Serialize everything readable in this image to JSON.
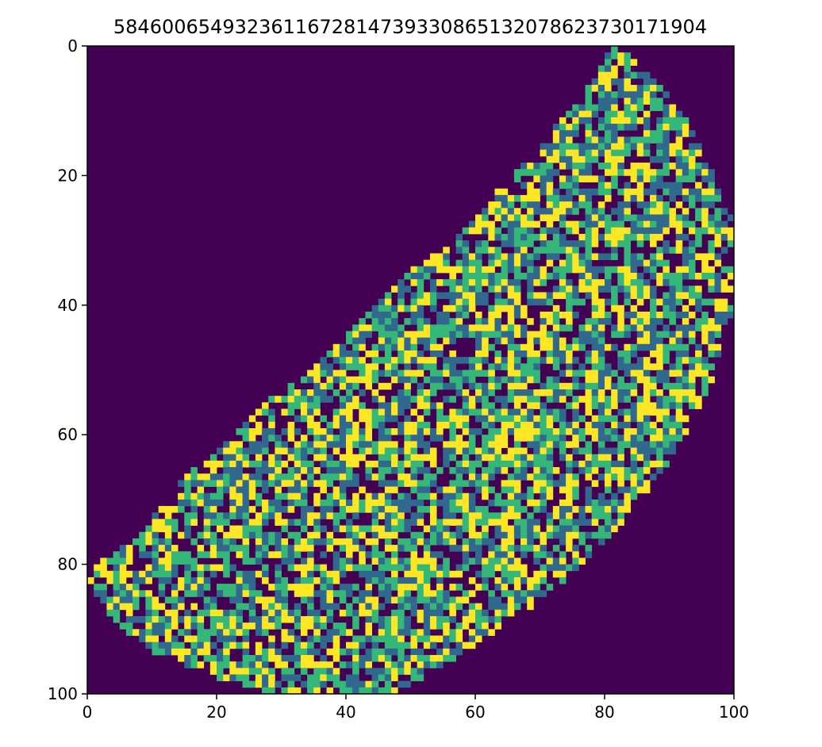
{
  "chart_data": {
    "type": "heatmap",
    "title": "5846006549323611672814739330865132078623730171904",
    "xlabel": "",
    "ylabel": "",
    "xlim": [
      0,
      100
    ],
    "ylim": [
      100,
      0
    ],
    "grid": false,
    "origin": "upper",
    "xticks": [
      "0",
      "20",
      "40",
      "60",
      "80",
      "100"
    ],
    "yticks": [
      "0",
      "20",
      "40",
      "60",
      "80",
      "100"
    ],
    "levels": [
      0,
      1,
      2,
      3
    ],
    "colormap": [
      "#440154",
      "#31688e",
      "#35b779",
      "#fde725"
    ],
    "background_value": 0,
    "region_left_boundary": [
      [
        0,
        81
      ],
      [
        1,
        80
      ],
      [
        5,
        78
      ],
      [
        10,
        74
      ],
      [
        15,
        70
      ],
      [
        20,
        65
      ],
      [
        25,
        61
      ],
      [
        30,
        56
      ],
      [
        35,
        49
      ],
      [
        40,
        44
      ],
      [
        45,
        39
      ],
      [
        50,
        34
      ],
      [
        55,
        27
      ],
      [
        60,
        22
      ],
      [
        65,
        16
      ],
      [
        70,
        12
      ],
      [
        75,
        8
      ],
      [
        80,
        1
      ],
      [
        82,
        0
      ],
      [
        85,
        2
      ],
      [
        88,
        4
      ],
      [
        90,
        6
      ],
      [
        93,
        10
      ],
      [
        95,
        15
      ],
      [
        97,
        20
      ],
      [
        99,
        27
      ]
    ],
    "region_right_boundary": [
      [
        0,
        82
      ],
      [
        2,
        85
      ],
      [
        5,
        88
      ],
      [
        10,
        92
      ],
      [
        15,
        95
      ],
      [
        20,
        97
      ],
      [
        25,
        99
      ],
      [
        27,
        100
      ],
      [
        40,
        100
      ],
      [
        45,
        98
      ],
      [
        50,
        97
      ],
      [
        55,
        95
      ],
      [
        60,
        92
      ],
      [
        65,
        89
      ],
      [
        70,
        85
      ],
      [
        75,
        81
      ],
      [
        80,
        76
      ],
      [
        85,
        70
      ],
      [
        90,
        63
      ],
      [
        95,
        55
      ],
      [
        99,
        48
      ]
    ]
  }
}
